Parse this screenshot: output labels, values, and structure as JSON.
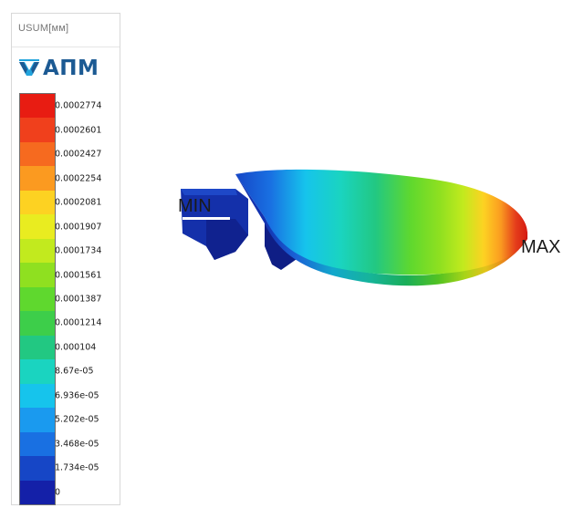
{
  "legend": {
    "quantity_label": "USUM[мм]",
    "brand_name": "АПМ",
    "brand_icon": "apm-logo-icon",
    "colors": [
      "#e81c12",
      "#f0401c",
      "#f66a1f",
      "#fb9a20",
      "#fdd222",
      "#e9ec20",
      "#c2ea1e",
      "#8fe020",
      "#5fd82e",
      "#3dce4a",
      "#22c882",
      "#1ad4c0",
      "#16c4ec",
      "#1a9aef",
      "#1970e2",
      "#1646c6",
      "#1420a8"
    ],
    "values": [
      "0.0002774",
      "0.0002601",
      "0.0002427",
      "0.0002254",
      "0.0002081",
      "0.0001907",
      "0.0001734",
      "0.0001561",
      "0.0001387",
      "0.0001214",
      "0.000104",
      "8.67e-05",
      "6.936e-05",
      "5.202e-05",
      "3.468e-05",
      "1.734e-05",
      "0"
    ]
  },
  "markers": {
    "min_label": "MIN",
    "max_label": "MAX"
  }
}
